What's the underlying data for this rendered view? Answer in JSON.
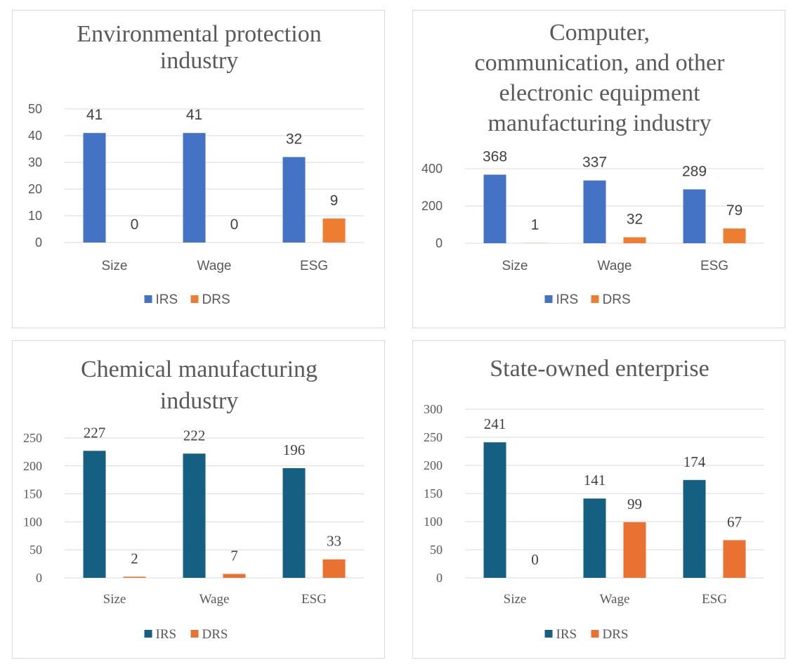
{
  "chart_data": [
    {
      "type": "bar",
      "title": "Environmental protection industry",
      "title_lines": [
        "Environmental protection",
        "industry"
      ],
      "categories": [
        "Size",
        "Wage",
        "ESG"
      ],
      "series": [
        {
          "name": "IRS",
          "values": [
            41,
            41,
            32
          ],
          "color": "#4472C4"
        },
        {
          "name": "DRS",
          "values": [
            0,
            0,
            9
          ],
          "color": "#ED7D31"
        }
      ],
      "ylim": [
        0,
        50
      ],
      "yticks": [
        0,
        10,
        20,
        30,
        40,
        50
      ],
      "legend": "bottom",
      "grid": true
    },
    {
      "type": "bar",
      "title": "Computer, communication, and other electronic equipment manufacturing industry",
      "title_lines": [
        "Computer,",
        "communication, and other",
        "electronic equipment",
        "manufacturing industry"
      ],
      "categories": [
        "Size",
        "Wage",
        "ESG"
      ],
      "series": [
        {
          "name": "IRS",
          "values": [
            368,
            337,
            289
          ],
          "color": "#4472C4"
        },
        {
          "name": "DRS",
          "values": [
            1,
            32,
            79
          ],
          "color": "#ED7D31"
        }
      ],
      "ylim": [
        0,
        400
      ],
      "yticks": [
        0,
        200,
        400
      ],
      "legend": "bottom",
      "grid": true
    },
    {
      "type": "bar",
      "title": "Chemical manufacturing industry",
      "title_lines": [
        "Chemical manufacturing",
        "industry"
      ],
      "categories": [
        "Size",
        "Wage",
        "ESG"
      ],
      "series": [
        {
          "name": "IRS",
          "values": [
            227,
            222,
            196
          ],
          "color": "#156082"
        },
        {
          "name": "DRS",
          "values": [
            2,
            7,
            33
          ],
          "color": "#E97132"
        }
      ],
      "ylim": [
        0,
        250
      ],
      "yticks": [
        0,
        50,
        100,
        150,
        200,
        250
      ],
      "legend": "bottom",
      "grid": true
    },
    {
      "type": "bar",
      "title": "State-owned enterprise",
      "title_lines": [
        "State-owned enterprise"
      ],
      "categories": [
        "Size",
        "Wage",
        "ESG"
      ],
      "series": [
        {
          "name": "IRS",
          "values": [
            241,
            141,
            174
          ],
          "color": "#156082"
        },
        {
          "name": "DRS",
          "values": [
            0,
            99,
            67
          ],
          "color": "#E97132"
        }
      ],
      "ylim": [
        0,
        300
      ],
      "yticks": [
        0,
        50,
        100,
        150,
        200,
        250,
        300
      ],
      "legend": "bottom",
      "grid": true
    }
  ]
}
